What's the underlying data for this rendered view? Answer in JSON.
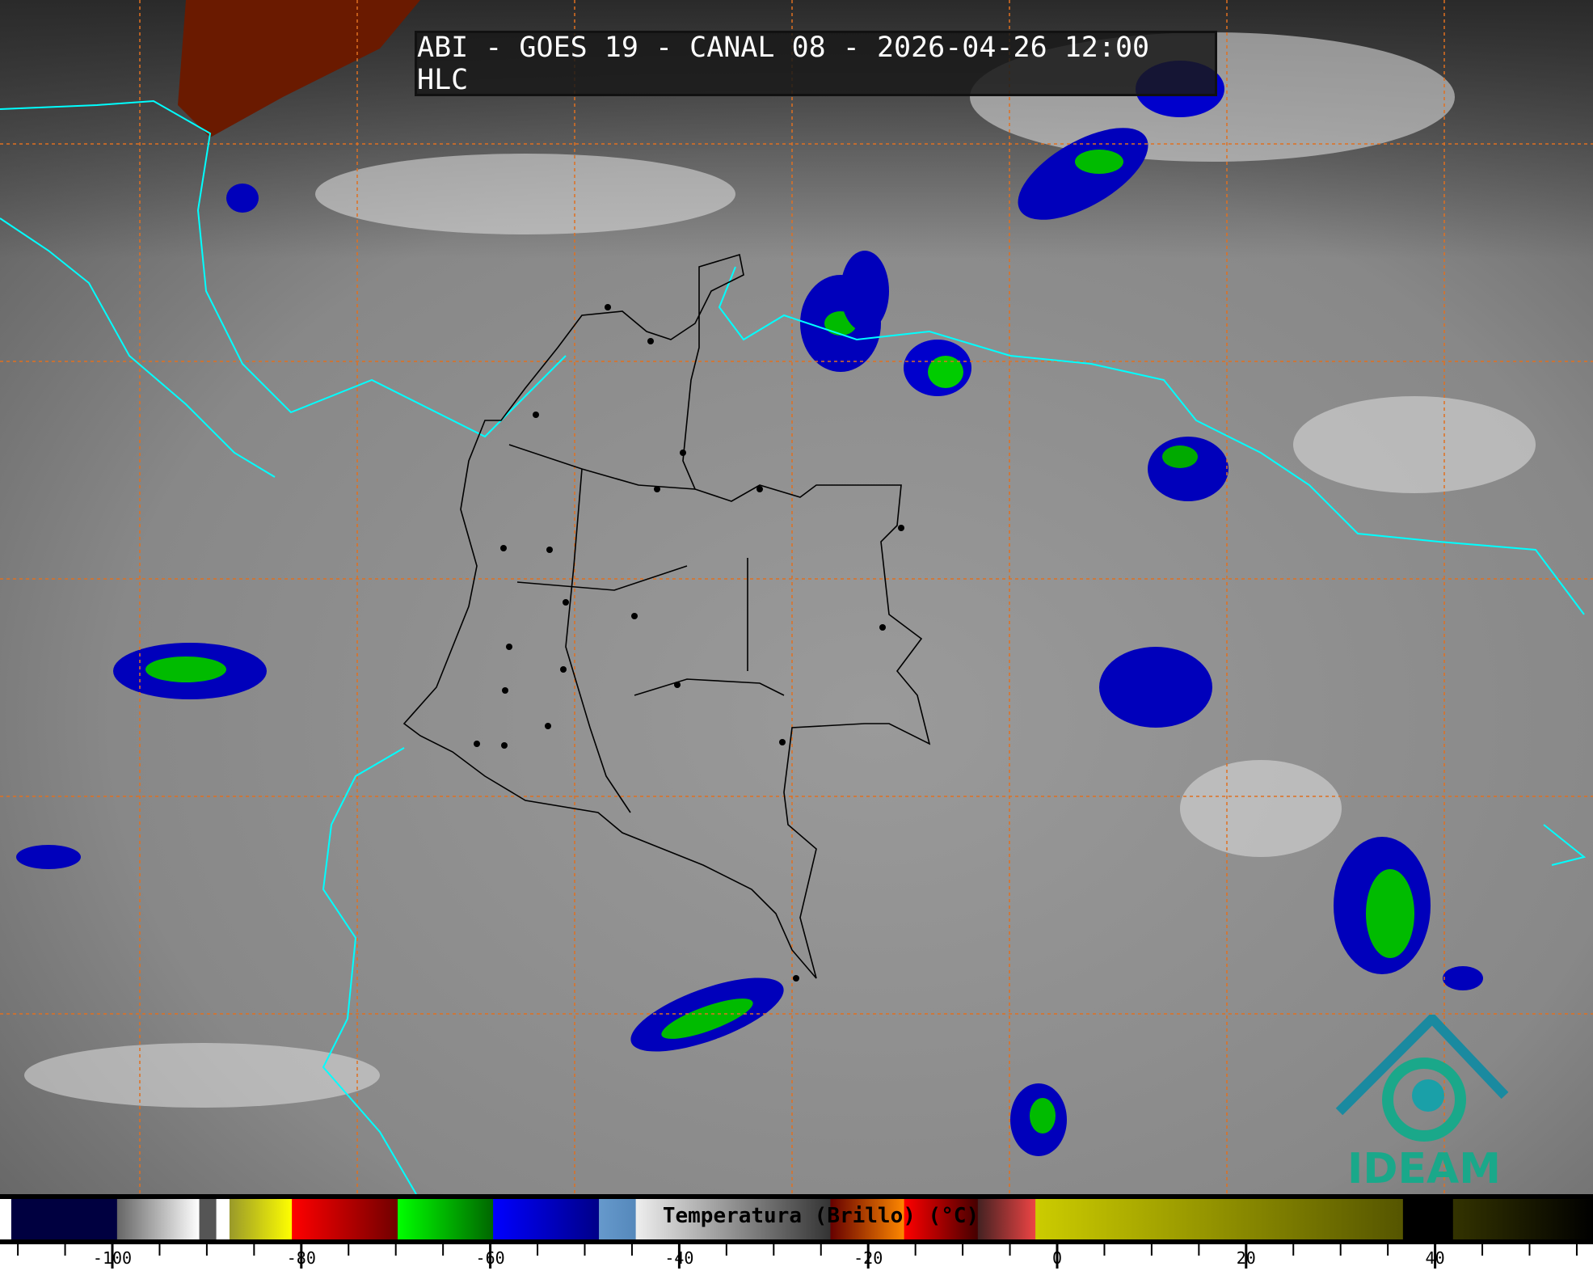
{
  "title": "ABI - GOES 19 - CANAL 08 - 2026-04-26 12:00 HLC",
  "colorbar": {
    "label": "Temperatura (Brillo) (°C)",
    "unit": "°C",
    "range": [
      -112,
      57
    ],
    "tick_labels": [
      "-100",
      "-80",
      "-60",
      "-40",
      "-20",
      "0",
      "20",
      "40"
    ],
    "tick_values": [
      -100,
      -80,
      -60,
      -40,
      -20,
      0,
      20,
      40
    ],
    "segments": [
      {
        "from": -112,
        "to": -110.7,
        "colors": [
          "#ffffff",
          "#ffffff"
        ]
      },
      {
        "from": -110.7,
        "to": -99.5,
        "colors": [
          "#000040",
          "#000040"
        ]
      },
      {
        "from": -99.5,
        "to": -90.8,
        "colors": [
          "#666666",
          "#ffffff"
        ]
      },
      {
        "from": -90.8,
        "to": -89,
        "colors": [
          "#555555",
          "#555555"
        ]
      },
      {
        "from": -89,
        "to": -87.6,
        "colors": [
          "#ffffff",
          "#ffffff"
        ]
      },
      {
        "from": -87.6,
        "to": -81,
        "colors": [
          "#99992a",
          "#ffff00"
        ]
      },
      {
        "from": -81,
        "to": -69.8,
        "colors": [
          "#ff0000",
          "#700000"
        ]
      },
      {
        "from": -69.8,
        "to": -59.7,
        "colors": [
          "#00ff00",
          "#006600"
        ]
      },
      {
        "from": -59.7,
        "to": -48.5,
        "colors": [
          "#0000ff",
          "#000088"
        ]
      },
      {
        "from": -48.5,
        "to": -44.6,
        "colors": [
          "#6699cc",
          "#5588bb"
        ]
      },
      {
        "from": -44.6,
        "to": -24,
        "colors": [
          "#eeeeee",
          "#333333"
        ]
      },
      {
        "from": -24,
        "to": -16.2,
        "colors": [
          "#660000",
          "#ff8800"
        ]
      },
      {
        "from": -16.2,
        "to": -8.4,
        "colors": [
          "#ff0000",
          "#440000"
        ]
      },
      {
        "from": -8.4,
        "to": -2.3,
        "colors": [
          "#442222",
          "#ee4444"
        ]
      },
      {
        "from": -2.3,
        "to": 36.6,
        "colors": [
          "#cccc00",
          "#555500"
        ]
      },
      {
        "from": 36.6,
        "to": 41.9,
        "colors": [
          "#000000",
          "#000000"
        ]
      },
      {
        "from": 41.9,
        "to": 57,
        "colors": [
          "#333300",
          "#000000"
        ]
      }
    ]
  },
  "logo": {
    "text": "IDEAM",
    "color": "#1aa88a"
  },
  "colors": {
    "coastline": "#00ffff",
    "grid": "#e07020",
    "borders": "#000000"
  }
}
